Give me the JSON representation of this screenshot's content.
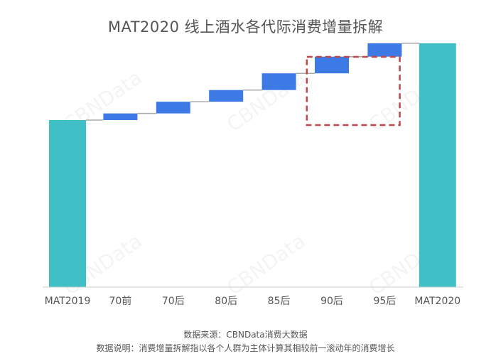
{
  "title": "MAT2020 线上酒水各代际消费增量拆解",
  "watermark": "CBNData",
  "chart_data": {
    "type": "waterfall",
    "categories": [
      "MAT2019",
      "70前",
      "70后",
      "80后",
      "85后",
      "90后",
      "95后",
      "MAT2020"
    ],
    "values": [
      100,
      4,
      7,
      7,
      10,
      10,
      8,
      146
    ],
    "kinds": [
      "total",
      "delta",
      "delta",
      "delta",
      "delta",
      "delta",
      "delta",
      "total"
    ],
    "ylim": [
      0,
      160
    ],
    "colors": {
      "total": "#40bfc6",
      "delta": "#3d7ae6",
      "connector": "#aaaaaa",
      "highlight": "#c0474a"
    },
    "highlight_categories": [
      "90后",
      "95后"
    ],
    "grid": false
  },
  "footer": {
    "source": "数据来源：CBNData消费大数据",
    "note": "数据说明：消费增量拆解指以各个人群为主体计算其相较前一滚动年的消费增长"
  }
}
